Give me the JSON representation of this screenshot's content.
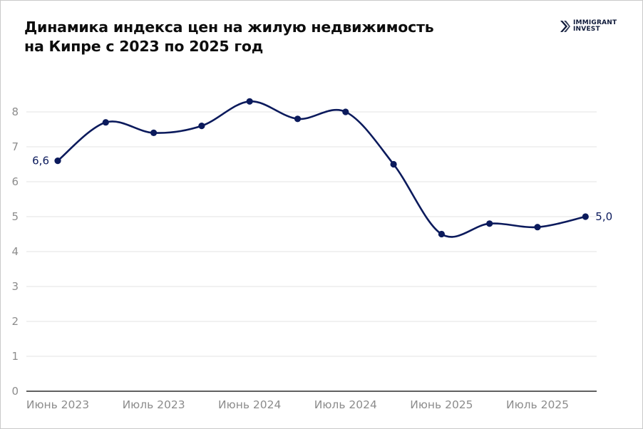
{
  "title": {
    "line1": "Динамика индекса цен на жилую недвижимость",
    "line2": "на Кипре с 2023 по 2025 год"
  },
  "logo": {
    "line1": "IMMIGRANT",
    "line2": "INVEST",
    "icon": "immigrant-invest-chevron-icon"
  },
  "colors": {
    "line": "#0b1a5c",
    "grid": "#e3e3e3",
    "axis": "#2b2b2b",
    "tick_text": "#8c8c8c"
  },
  "chart_data": {
    "type": "line",
    "title": "Динамика индекса цен на жилую недвижимость на Кипре с 2023 по 2025 год",
    "x_tick_labels": [
      "Июнь 2023",
      "Июль 2023",
      "Июнь 2024",
      "Июль 2024",
      "Июнь 2025",
      "Июль 2025"
    ],
    "x_tick_every": 2,
    "series": [
      {
        "values": [
          6.6,
          7.7,
          7.4,
          7.6,
          8.3,
          7.8,
          8.0,
          6.5,
          4.5,
          4.8,
          4.7,
          5.0
        ]
      }
    ],
    "data_labels": [
      {
        "index": 0,
        "text": "6,6"
      },
      {
        "index": 11,
        "text": "5,0"
      }
    ],
    "y_ticks": [
      0,
      1,
      2,
      3,
      4,
      5,
      6,
      7,
      8
    ],
    "ylim": [
      0,
      9
    ],
    "grid": true,
    "smooth": true,
    "legend": false
  }
}
